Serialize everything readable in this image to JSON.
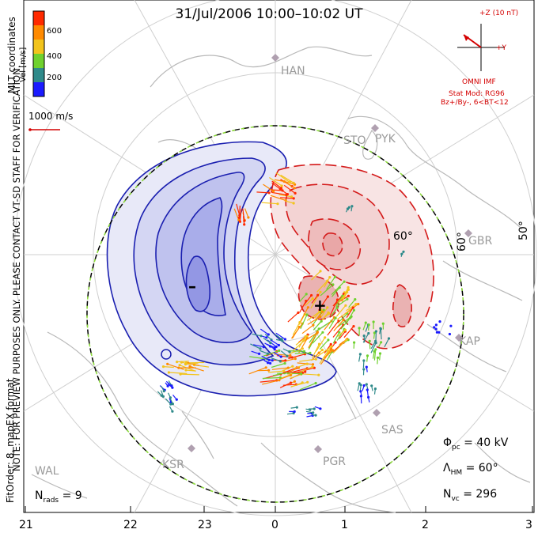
{
  "title": "31/Jul/2006 10:00–10:02 UT",
  "side_notes": {
    "coords": "MLT coordinates",
    "preview": "NOTE: FOR PREVIEW PURPOSES ONLY. PLEASE CONTACT VT-SD STAFF FOR VERIFICATION.",
    "fit": "FitOrder: 8, mapEX format"
  },
  "color_scale": {
    "label": "Vel [m/s]",
    "ticks": [
      "600",
      "400",
      "200"
    ],
    "colors": [
      "#1b1bff",
      "#2f8a8a",
      "#6fd12e",
      "#f2c41c",
      "#ff8a00",
      "#ff2a00"
    ]
  },
  "reference_vector": {
    "label": "1000 m/s",
    "color": "#d40000"
  },
  "imf": {
    "z_label": "+Z (10 nT)",
    "y_label": "+Y",
    "source": "OMNI IMF",
    "model": "Stat Mod: RG96",
    "condition": "Bz+/By-, 6<BT<12",
    "color": "#d40000"
  },
  "stations": [
    "HAN",
    "STO",
    "PYK",
    "GBR",
    "KAP",
    "SAS",
    "PGR",
    "KSR",
    "WAL"
  ],
  "latitude_labels": [
    "60°",
    "50°",
    "60°"
  ],
  "mlt_ticks": [
    "21",
    "22",
    "23",
    "0",
    "1",
    "2",
    "3"
  ],
  "stats": {
    "potential_symbol": "Φ",
    "potential_sub": "pc",
    "potential_value": "= 40 kV",
    "hm_symbol": "Λ",
    "hm_sub": "HM",
    "hm_value": "= 60°",
    "nvc_symbol": "N",
    "nvc_sub": "vc",
    "nvc_value": "= 296",
    "nrads_symbol": "N",
    "nrads_sub": "rads",
    "nrads_value": "= 9"
  },
  "extrema": {
    "min": "–",
    "max": "+"
  },
  "cell_colors": {
    "dusk_fill": "#c8cbf0",
    "dawn_fill": "#f5c9c9",
    "dusk_line": "#1a1fb0",
    "dawn_line": "#d41a1a"
  }
}
